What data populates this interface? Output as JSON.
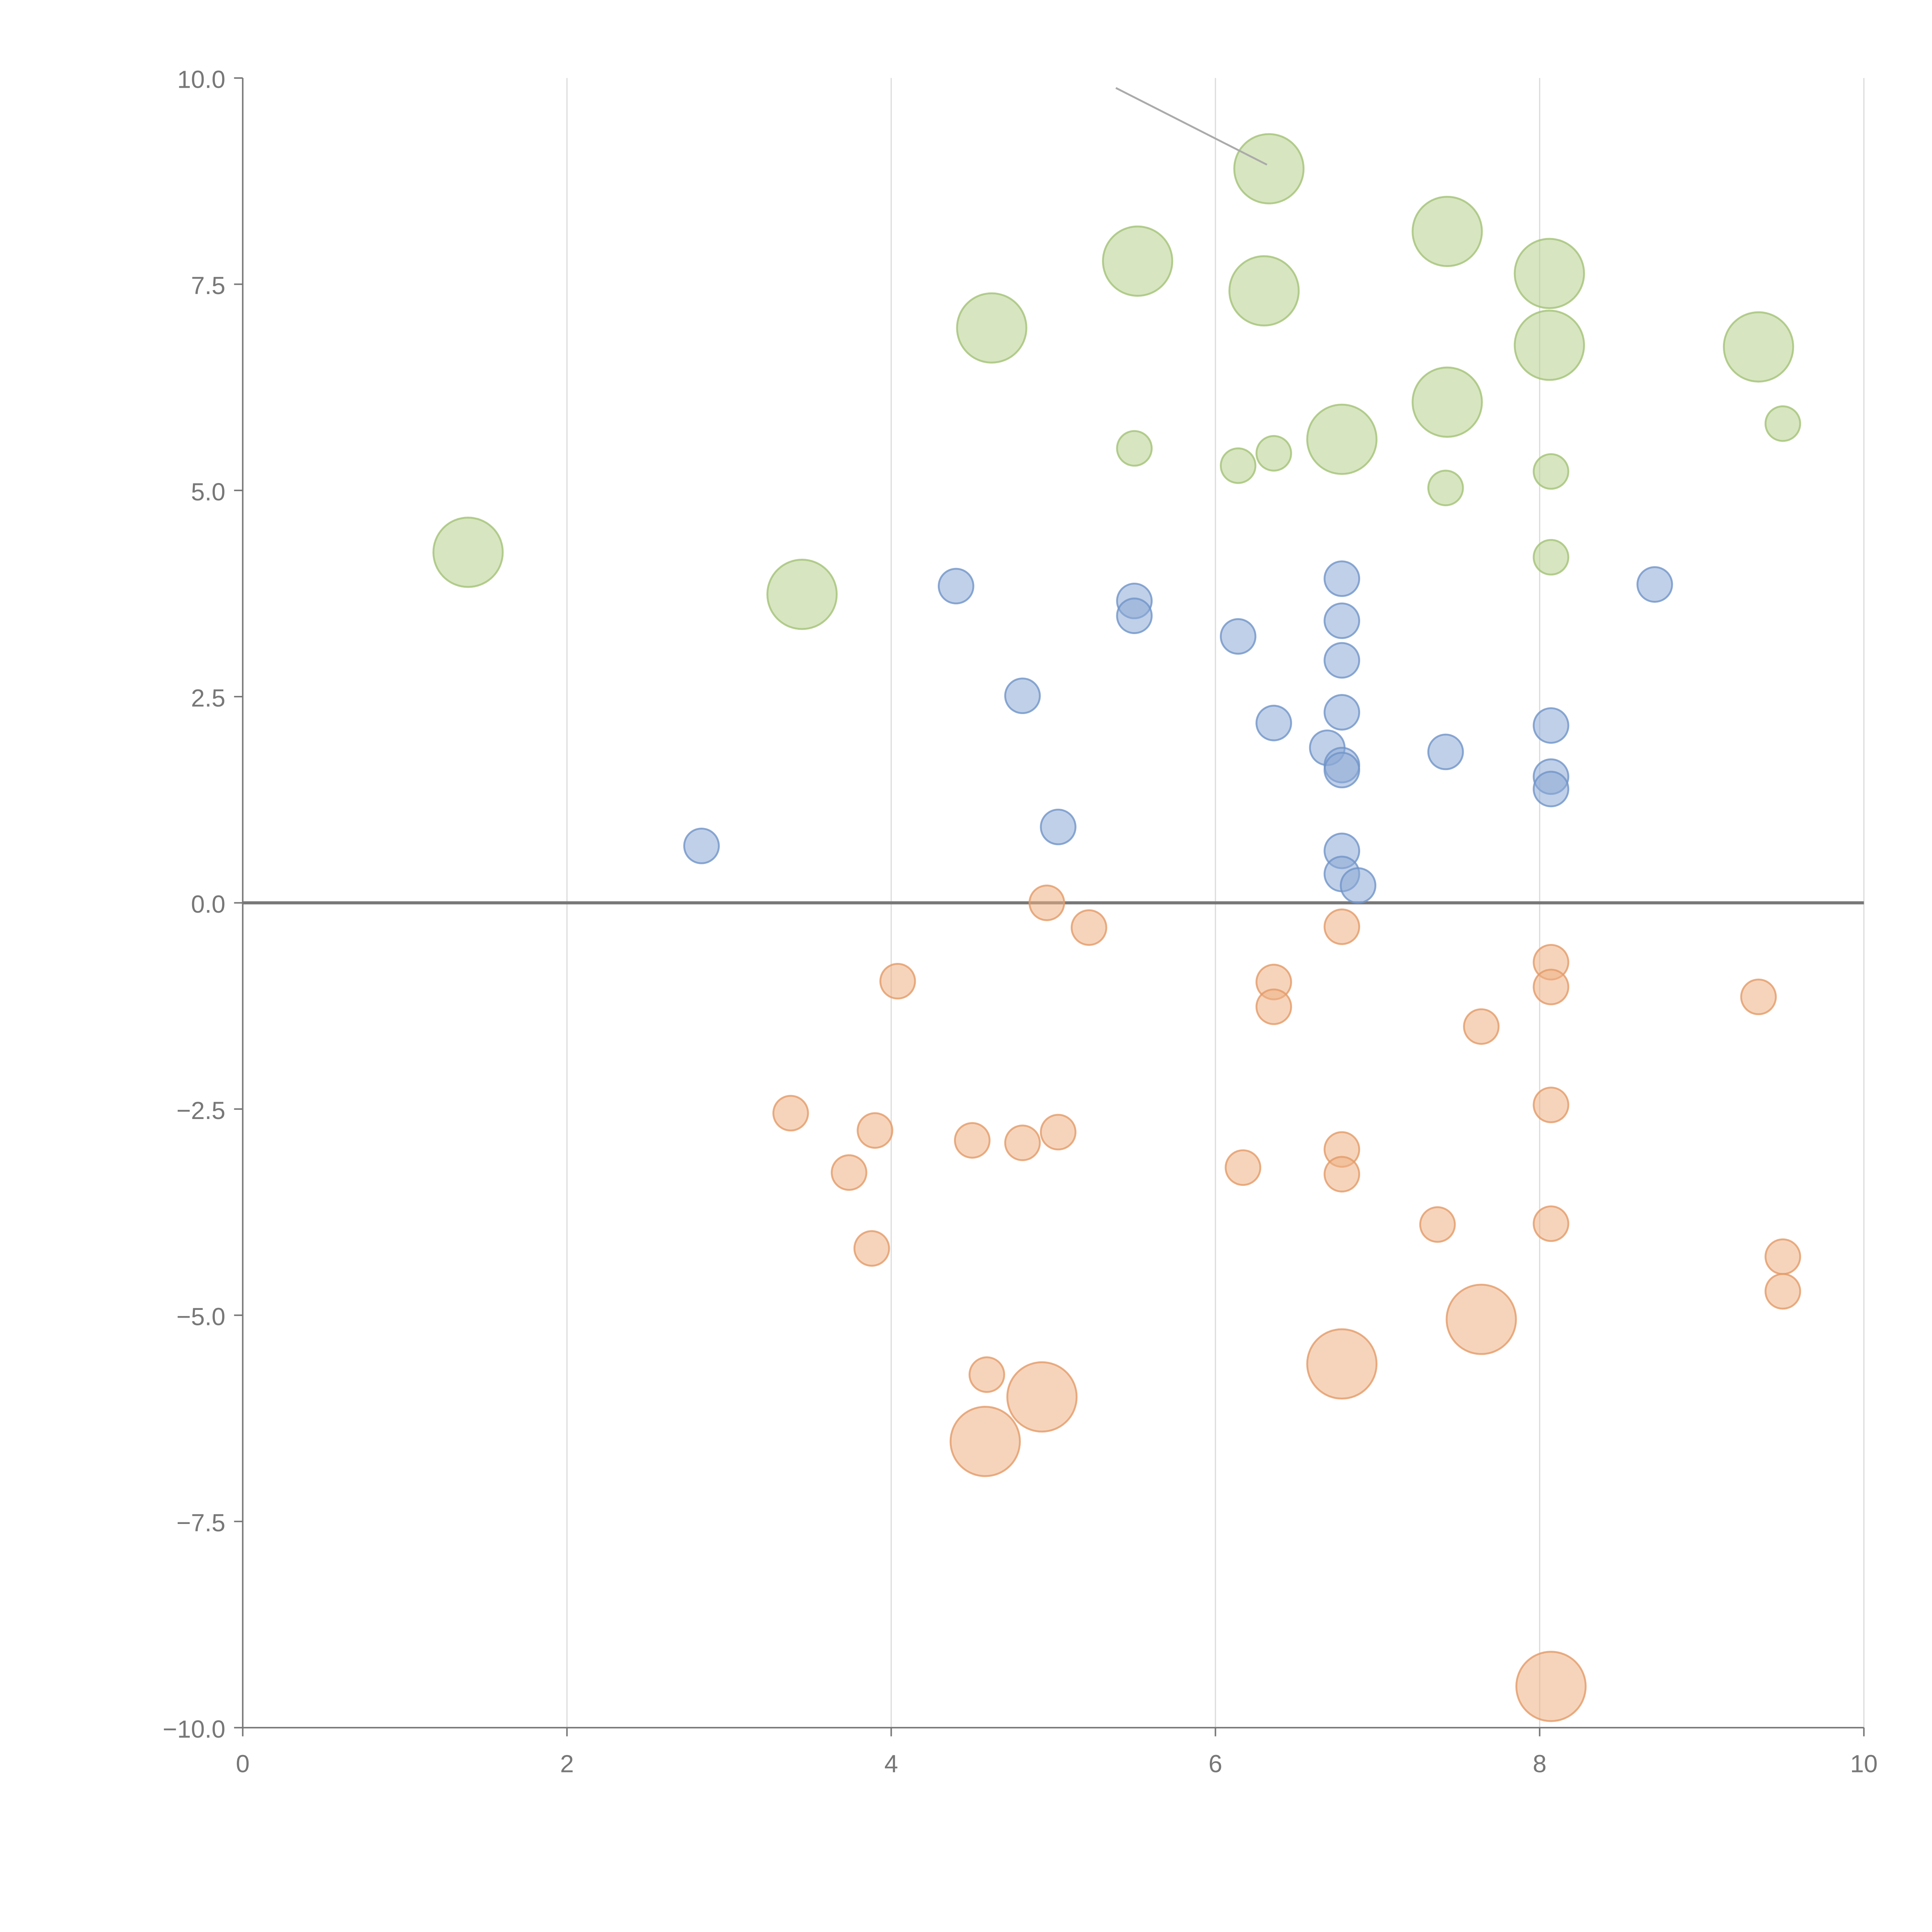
{
  "chart_data": {
    "type": "scatter",
    "title": "",
    "xlabel": "",
    "ylabel": "",
    "xlim": [
      0,
      10
    ],
    "ylim": [
      -10,
      10
    ],
    "xticks": [
      "0",
      "2",
      "4",
      "6",
      "8",
      "10"
    ],
    "xtick_values": [
      0,
      2,
      4,
      6,
      8,
      10
    ],
    "yticks": [
      "10.0",
      "7.5",
      "5.0",
      "2.5",
      "0.0",
      "−2.5",
      "−5.0",
      "−7.5",
      "−10.0"
    ],
    "ytick_values": [
      10,
      7.5,
      5,
      2.5,
      0,
      -2.5,
      -5,
      -7.5,
      -10
    ],
    "grid": "vertical",
    "zero_line": 0,
    "size_note": "size 2 = large bubble, 1 = small bubble",
    "series": [
      {
        "name": "green",
        "color": "#b7d08e",
        "stroke": "#a3c275",
        "points": [
          [
            6.33,
            8.9,
            2
          ],
          [
            7.43,
            8.14,
            2
          ],
          [
            5.52,
            7.78,
            2
          ],
          [
            6.3,
            7.42,
            2
          ],
          [
            8.06,
            7.63,
            2
          ],
          [
            4.62,
            6.97,
            2
          ],
          [
            8.06,
            6.76,
            2
          ],
          [
            9.35,
            6.74,
            2
          ],
          [
            7.43,
            6.07,
            2
          ],
          [
            6.78,
            5.62,
            2
          ],
          [
            1.39,
            4.25,
            2
          ],
          [
            3.45,
            3.74,
            2
          ],
          [
            5.5,
            5.51,
            1
          ],
          [
            6.14,
            5.3,
            1
          ],
          [
            6.36,
            5.45,
            1
          ],
          [
            7.42,
            5.03,
            1
          ],
          [
            8.07,
            5.23,
            1
          ],
          [
            9.5,
            5.81,
            1
          ],
          [
            8.07,
            4.19,
            1
          ]
        ]
      },
      {
        "name": "blue",
        "color": "#8caad6",
        "stroke": "#6f93c8",
        "points": [
          [
            4.4,
            3.84,
            1
          ],
          [
            5.5,
            3.66,
            1
          ],
          [
            5.5,
            3.48,
            1
          ],
          [
            4.81,
            2.51,
            1
          ],
          [
            6.14,
            3.23,
            1
          ],
          [
            6.78,
            3.93,
            1
          ],
          [
            6.78,
            3.42,
            1
          ],
          [
            6.78,
            2.94,
            1
          ],
          [
            6.78,
            2.31,
            1
          ],
          [
            6.36,
            2.18,
            1
          ],
          [
            6.69,
            1.88,
            1
          ],
          [
            6.78,
            1.67,
            1
          ],
          [
            6.78,
            1.61,
            1
          ],
          [
            7.42,
            1.83,
            1
          ],
          [
            8.07,
            2.15,
            1
          ],
          [
            8.07,
            1.53,
            1
          ],
          [
            8.07,
            1.38,
            1
          ],
          [
            8.71,
            3.86,
            1
          ],
          [
            2.83,
            0.69,
            1
          ],
          [
            5.03,
            0.92,
            1
          ],
          [
            6.78,
            0.63,
            1
          ],
          [
            6.78,
            0.35,
            1
          ],
          [
            6.88,
            0.21,
            1
          ]
        ]
      },
      {
        "name": "orange",
        "color": "#eeb085",
        "stroke": "#e39a66",
        "points": [
          [
            4.96,
            0.0,
            1
          ],
          [
            5.22,
            -0.3,
            1
          ],
          [
            4.04,
            -0.95,
            1
          ],
          [
            6.36,
            -0.96,
            1
          ],
          [
            6.36,
            -1.26,
            1
          ],
          [
            6.78,
            -0.29,
            1
          ],
          [
            8.07,
            -0.72,
            1
          ],
          [
            8.07,
            -1.02,
            1
          ],
          [
            7.64,
            -1.5,
            1
          ],
          [
            9.35,
            -1.14,
            1
          ],
          [
            3.38,
            -2.55,
            1
          ],
          [
            3.9,
            -2.76,
            1
          ],
          [
            3.74,
            -3.27,
            1
          ],
          [
            4.5,
            -2.88,
            1
          ],
          [
            4.81,
            -2.91,
            1
          ],
          [
            5.03,
            -2.78,
            1
          ],
          [
            6.17,
            -3.21,
            1
          ],
          [
            6.78,
            -2.99,
            1
          ],
          [
            6.78,
            -3.29,
            1
          ],
          [
            8.07,
            -2.45,
            1
          ],
          [
            3.88,
            -4.19,
            1
          ],
          [
            7.37,
            -3.9,
            1
          ],
          [
            8.07,
            -3.89,
            1
          ],
          [
            9.5,
            -4.29,
            1
          ],
          [
            9.5,
            -4.71,
            1
          ],
          [
            4.59,
            -5.72,
            1
          ],
          [
            7.64,
            -5.05,
            2
          ],
          [
            6.78,
            -5.59,
            2
          ],
          [
            4.93,
            -5.99,
            2
          ],
          [
            4.58,
            -6.53,
            2
          ],
          [
            8.07,
            -9.5,
            2
          ]
        ]
      }
    ]
  }
}
